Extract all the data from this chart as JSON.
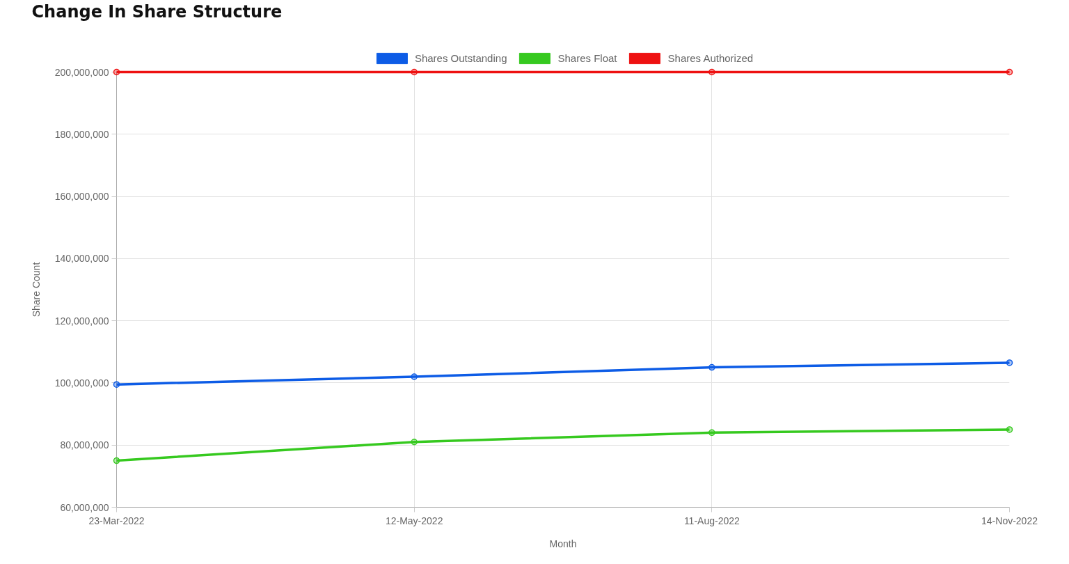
{
  "chart_data": {
    "type": "line",
    "title": "Change In Share Structure",
    "xlabel": "Month",
    "ylabel": "Share Count",
    "categories": [
      "23-Mar-2022",
      "12-May-2022",
      "11-Aug-2022",
      "14-Nov-2022"
    ],
    "series": [
      {
        "name": "Shares Outstanding",
        "color": "#0d5ce6",
        "values": [
          99500000,
          102000000,
          105000000,
          106500000
        ]
      },
      {
        "name": "Shares Float",
        "color": "#36c91f",
        "values": [
          75000000,
          81000000,
          84000000,
          85000000
        ]
      },
      {
        "name": "Shares Authorized",
        "color": "#ee1111",
        "values": [
          200000000,
          200000000,
          200000000,
          200000000
        ]
      }
    ],
    "ylim": [
      60000000,
      200000000
    ],
    "yticks": [
      {
        "value": 60000000,
        "label": "60,000,000"
      },
      {
        "value": 80000000,
        "label": "80,000,000"
      },
      {
        "value": 100000000,
        "label": "100,000,000"
      },
      {
        "value": 120000000,
        "label": "120,000,000"
      },
      {
        "value": 140000000,
        "label": "140,000,000"
      },
      {
        "value": 160000000,
        "label": "160,000,000"
      },
      {
        "value": 180000000,
        "label": "180,000,000"
      },
      {
        "value": 200000000,
        "label": "200,000,000"
      }
    ],
    "grid": true,
    "legend": "top",
    "marker": "circle",
    "line_style": "solid"
  }
}
